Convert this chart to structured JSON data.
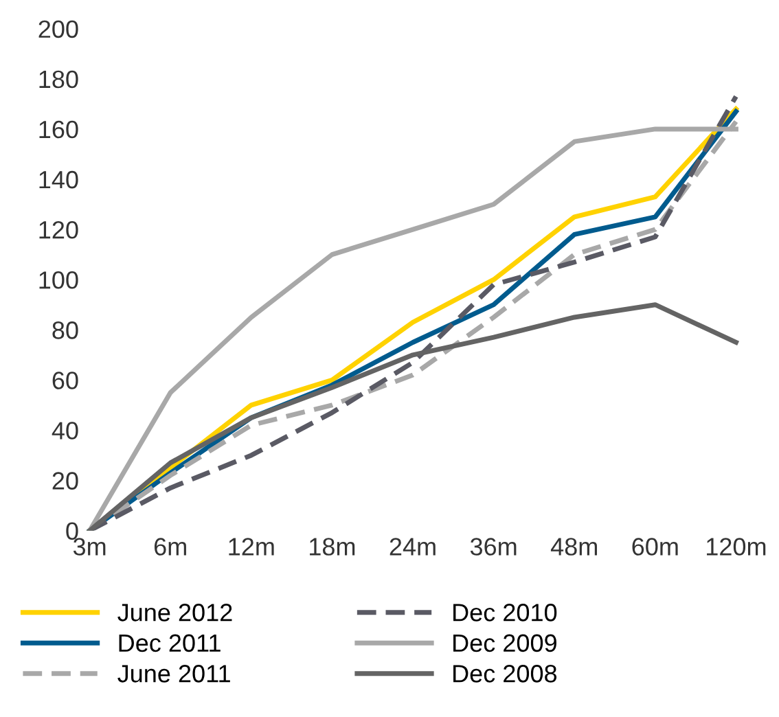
{
  "chart_data": {
    "type": "line",
    "categories": [
      "3m",
      "6m",
      "12m",
      "18m",
      "24m",
      "36m",
      "48m",
      "60m",
      "120m"
    ],
    "series": [
      {
        "name": "June 2012",
        "color": "#ffd200",
        "line_style": "solid",
        "values": [
          0,
          25,
          50,
          60,
          83,
          100,
          125,
          133,
          168
        ]
      },
      {
        "name": "Dec 2011",
        "color": "#005b8e",
        "line_style": "solid",
        "values": [
          0,
          23,
          45,
          58,
          75,
          90,
          118,
          125,
          167
        ]
      },
      {
        "name": "June 2011",
        "color": "#a8a8a8",
        "line_style": "dashed",
        "values": [
          0,
          22,
          42,
          50,
          62,
          85,
          110,
          120,
          163
        ]
      },
      {
        "name": "Dec 2010",
        "color": "#5a5a64",
        "line_style": "dashed",
        "values": [
          0,
          17,
          30,
          47,
          67,
          98,
          107,
          117,
          173
        ]
      },
      {
        "name": "Dec 2009",
        "color": "#a8a8a8",
        "line_style": "solid",
        "values": [
          0,
          55,
          85,
          110,
          120,
          130,
          155,
          160,
          160
        ]
      },
      {
        "name": "Dec 2008",
        "color": "#646464",
        "line_style": "solid",
        "values": [
          0,
          27,
          45,
          57,
          70,
          77,
          85,
          90,
          75
        ]
      }
    ],
    "ylim": [
      0,
      200
    ],
    "yticks": [
      0,
      20,
      40,
      60,
      80,
      100,
      120,
      140,
      160,
      180,
      200
    ],
    "grid": false,
    "legend": "bottom",
    "marker": "none"
  }
}
